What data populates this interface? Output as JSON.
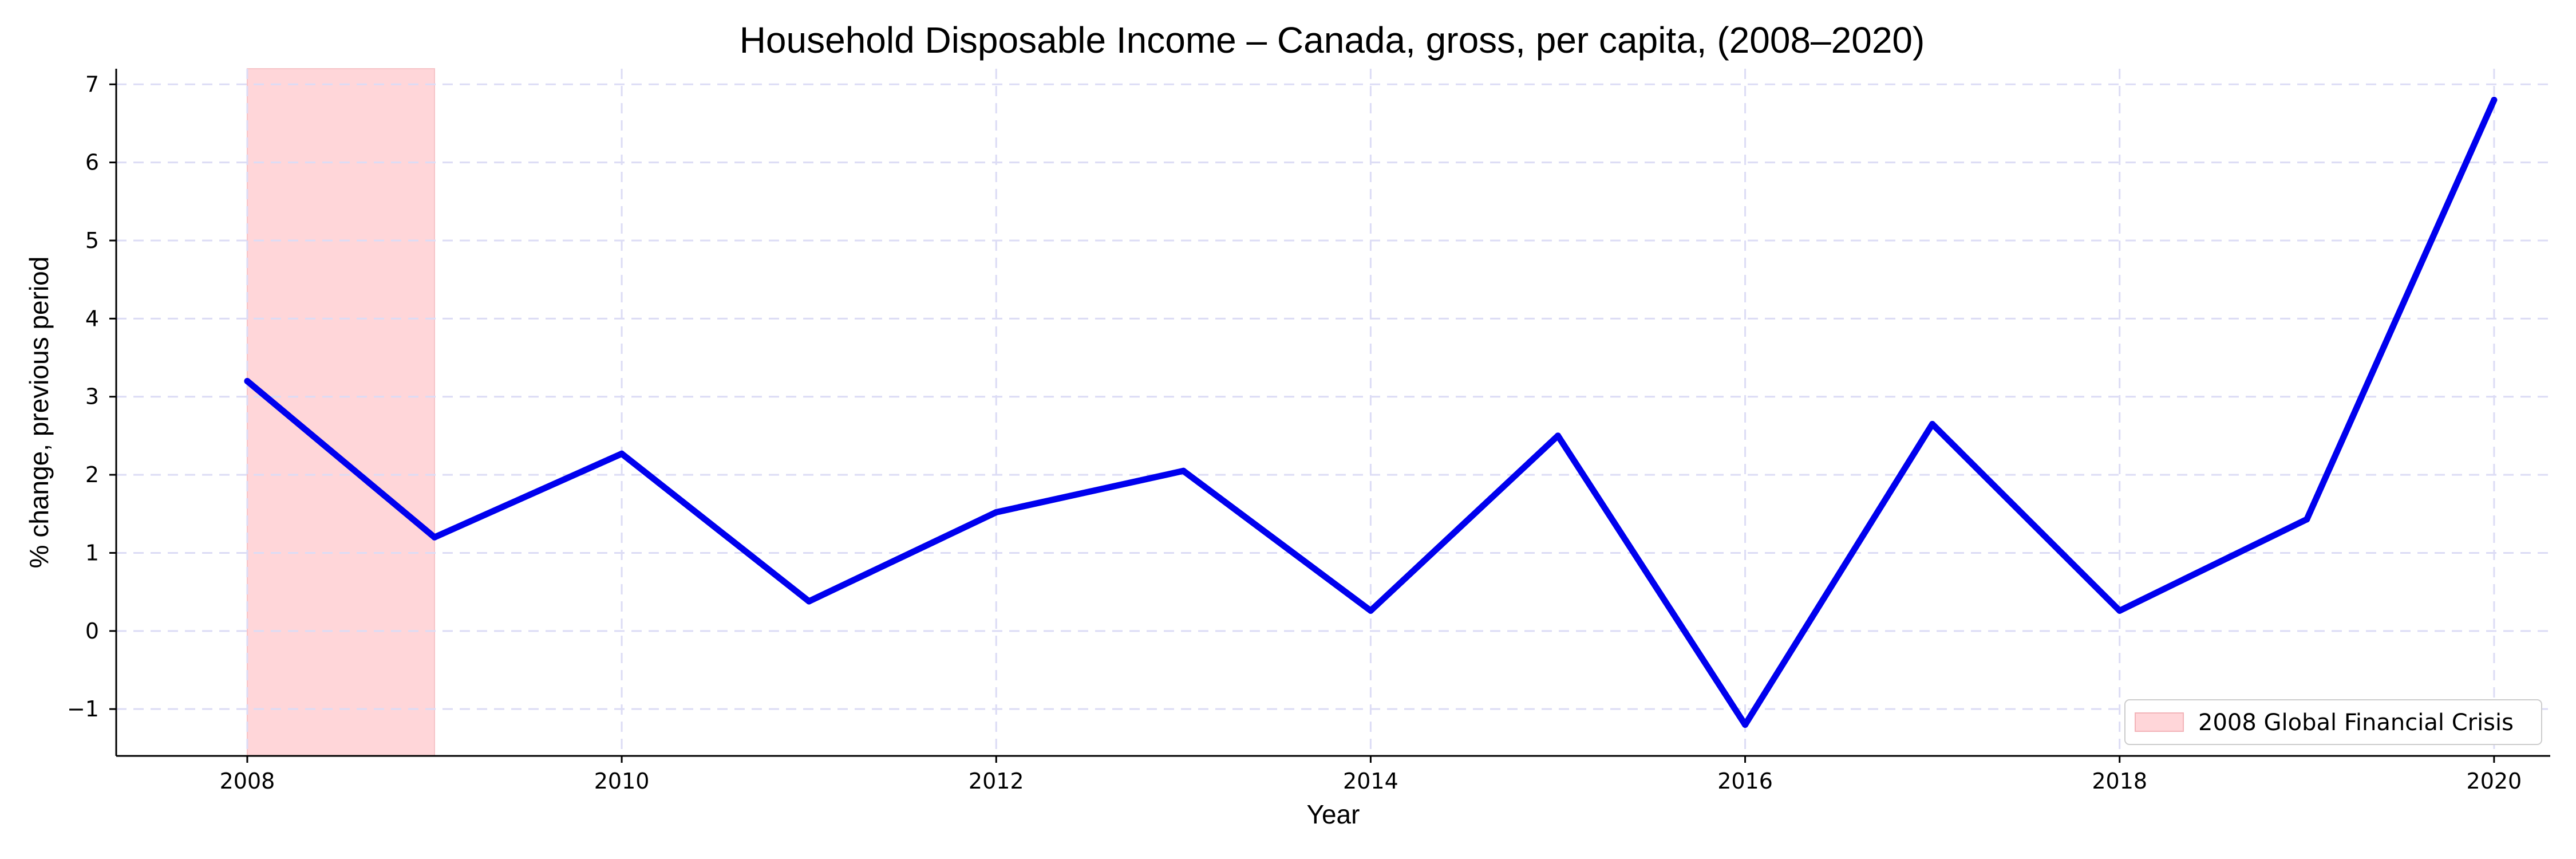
{
  "chart_data": {
    "type": "line",
    "title": "Household Disposable Income – Canada, gross, per capita, (2008–2020)",
    "xlabel": "Year",
    "ylabel": "% change, previous period",
    "xlim": [
      2007.3,
      2020.3
    ],
    "ylim": [
      -1.6,
      7.2
    ],
    "xticks": [
      2008,
      2010,
      2012,
      2014,
      2016,
      2018,
      2020
    ],
    "yticks": [
      -1,
      0,
      1,
      2,
      3,
      4,
      5,
      6,
      7
    ],
    "grid": true,
    "legend_position": "bottom-right",
    "series": [
      {
        "color": "#0000ee",
        "x": [
          2008,
          2009,
          2010,
          2011,
          2012,
          2013,
          2014,
          2015,
          2016,
          2017,
          2018,
          2019,
          2020
        ],
        "y": [
          3.2,
          1.2,
          2.27,
          0.38,
          1.52,
          2.05,
          0.26,
          2.5,
          -1.2,
          2.65,
          0.26,
          1.43,
          6.8
        ]
      }
    ],
    "shaded_regions": [
      {
        "label": "2008 Global Financial Crisis",
        "x_start": 2008,
        "x_end": 2009,
        "color": "#ffd6d9"
      }
    ]
  },
  "colors": {
    "line": "#0000ee",
    "shade": "#ffd6d9",
    "grid": "#dcdcf5"
  }
}
